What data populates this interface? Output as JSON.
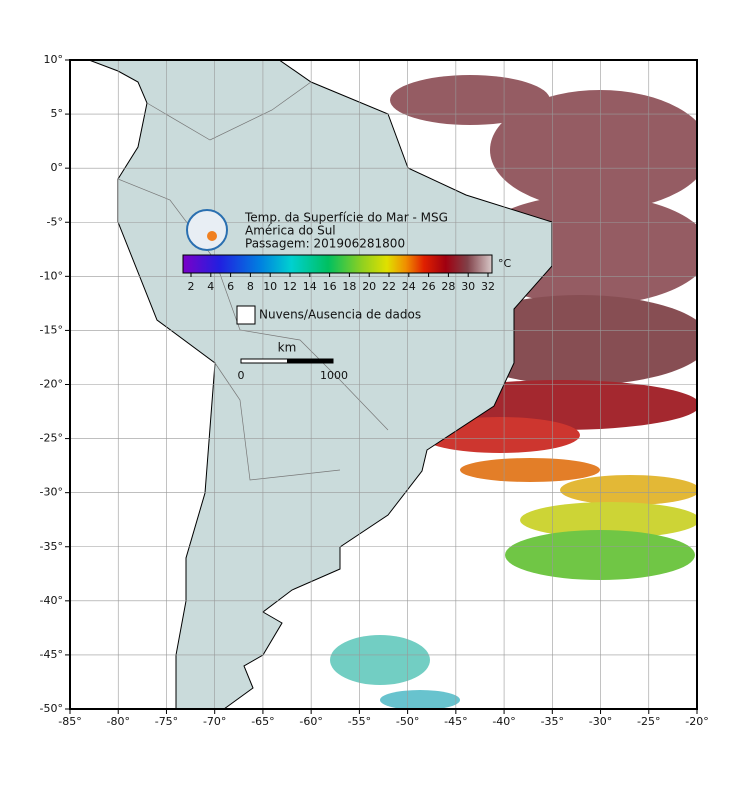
{
  "title": {
    "lines": [
      "Temp. da Superfície do Mar - MSG",
      "América do Sul",
      "Passagem: 201906281800"
    ]
  },
  "colorbar": {
    "ticks": [
      2,
      4,
      6,
      8,
      10,
      12,
      14,
      16,
      18,
      20,
      22,
      24,
      26,
      28,
      30,
      32
    ],
    "unit": "°C"
  },
  "legend": {
    "label": "Nuvens/Ausencia de dados"
  },
  "scale_bar": {
    "unit": "km",
    "labels": [
      0,
      1000
    ]
  },
  "axes": {
    "lon_range": [
      -85,
      -20
    ],
    "lat_range": [
      10,
      -50
    ],
    "lon_ticks": [
      {
        "value": -85,
        "label": "-85°"
      },
      {
        "value": -80,
        "label": "-80°"
      },
      {
        "value": -75,
        "label": "-75°"
      },
      {
        "value": -70,
        "label": "-70°"
      },
      {
        "value": -65,
        "label": "-65°"
      },
      {
        "value": -60,
        "label": "-60°"
      },
      {
        "value": -55,
        "label": "-55°"
      },
      {
        "value": -50,
        "label": "-50°"
      },
      {
        "value": -45,
        "label": "-45°"
      },
      {
        "value": -40,
        "label": "-40°"
      },
      {
        "value": -35,
        "label": "-35°"
      },
      {
        "value": -30,
        "label": "-30°"
      },
      {
        "value": -25,
        "label": "-25°"
      },
      {
        "value": -20,
        "label": "-20°"
      }
    ],
    "lat_ticks": [
      {
        "value": 10,
        "label": "10°"
      },
      {
        "value": 5,
        "label": "5°"
      },
      {
        "value": 0,
        "label": "0°"
      },
      {
        "value": -5,
        "label": "-5°"
      },
      {
        "value": -10,
        "label": "-10°"
      },
      {
        "value": -15,
        "label": "-15°"
      },
      {
        "value": -20,
        "label": "-20°"
      },
      {
        "value": -25,
        "label": "-25°"
      },
      {
        "value": -30,
        "label": "-30°"
      },
      {
        "value": -35,
        "label": "-35°"
      },
      {
        "value": -40,
        "label": "-40°"
      },
      {
        "value": -45,
        "label": "-45°"
      },
      {
        "value": -50,
        "label": "-50°"
      }
    ]
  }
}
